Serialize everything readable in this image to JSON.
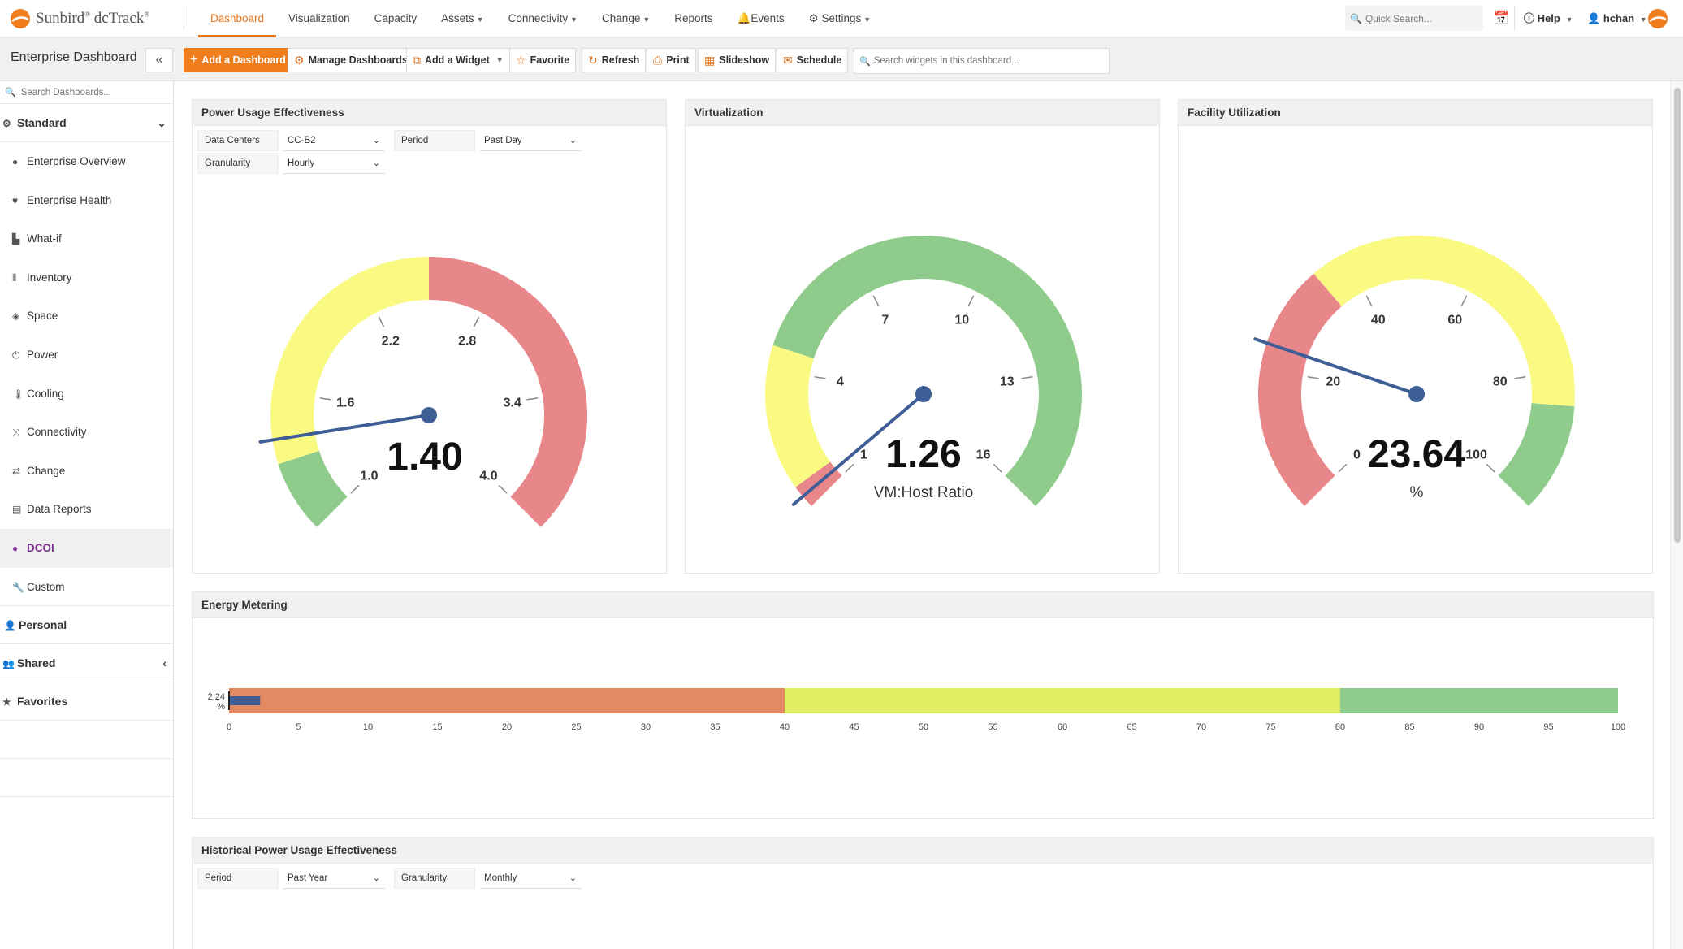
{
  "app": {
    "brand": "Sunbird",
    "product": "dcTrack"
  },
  "nav": [
    {
      "label": "Dashboard",
      "active": true,
      "caret": false
    },
    {
      "label": "Visualization",
      "active": false,
      "caret": false
    },
    {
      "label": "Capacity",
      "active": false,
      "caret": false
    },
    {
      "label": "Assets",
      "active": false,
      "caret": true
    },
    {
      "label": "Connectivity",
      "active": false,
      "caret": true
    },
    {
      "label": "Change",
      "active": false,
      "caret": true
    },
    {
      "label": "Reports",
      "active": false,
      "caret": false
    },
    {
      "label": "Events",
      "active": false,
      "caret": false
    },
    {
      "label": "Settings",
      "active": false,
      "caret": true
    }
  ],
  "topbar": {
    "search_placeholder": "Quick Search...",
    "help": "Help",
    "user": "hchan"
  },
  "toolbar": {
    "title": "Enterprise Dashboard",
    "add_dashboard": "Add a Dashboard",
    "manage": "Manage Dashboards",
    "add_widget": "Add a Widget",
    "favorite": "Favorite",
    "refresh": "Refresh",
    "print": "Print",
    "slideshow": "Slideshow",
    "schedule": "Schedule",
    "widget_search_placeholder": "Search widgets in this dashboard..."
  },
  "sidebar": {
    "search_placeholder": "Search Dashboards...",
    "standard_label": "Standard",
    "items": [
      {
        "label": "Enterprise Overview",
        "icon": "globe-icon"
      },
      {
        "label": "Enterprise Health",
        "icon": "heartbeat-icon"
      },
      {
        "label": "What-if",
        "icon": "thumbs-up-icon"
      },
      {
        "label": "Inventory",
        "icon": "barcode-icon"
      },
      {
        "label": "Space",
        "icon": "cubes-icon"
      },
      {
        "label": "Power",
        "icon": "power-icon"
      },
      {
        "label": "Cooling",
        "icon": "thermometer-icon"
      },
      {
        "label": "Connectivity",
        "icon": "shuffle-icon"
      },
      {
        "label": "Change",
        "icon": "exchange-icon"
      },
      {
        "label": "Data Reports",
        "icon": "table-icon"
      },
      {
        "label": "DCOI",
        "icon": "circle-icon",
        "active": true
      },
      {
        "label": "Custom",
        "icon": "wrench-icon"
      }
    ],
    "personal_label": "Personal",
    "shared_label": "Shared",
    "favorites_label": "Favorites"
  },
  "pue": {
    "title": "Power Usage Effectiveness",
    "filters": {
      "data_centers_label": "Data Centers",
      "data_centers_value": "CC-B2",
      "period_label": "Period",
      "period_value": "Past Day",
      "granularity_label": "Granularity",
      "granularity_value": "Hourly"
    },
    "gauge": {
      "min": 1.0,
      "max": 4.0,
      "value": 1.4,
      "value_text": "1.40",
      "unit": "",
      "ticks": [
        "1.0",
        "1.6",
        "2.2",
        "2.8",
        "3.4",
        "4.0"
      ],
      "bands": [
        {
          "from": 1.0,
          "to": 1.3,
          "color": "#8fcb8a"
        },
        {
          "from": 1.3,
          "to": 2.5,
          "color": "#fafa82"
        },
        {
          "from": 2.5,
          "to": 4.0,
          "color": "#e8878a"
        }
      ]
    }
  },
  "virtualization": {
    "title": "Virtualization",
    "gauge": {
      "min": 1,
      "max": 16,
      "value": 1.26,
      "value_text": "1.26",
      "unit": "VM:Host Ratio",
      "ticks": [
        "1",
        "4",
        "7",
        "10",
        "13",
        "16"
      ],
      "bands": [
        {
          "from": 0,
          "to": 1.5,
          "color": "#e8878a"
        },
        {
          "from": 1.5,
          "to": 4.5,
          "color": "#fafa82"
        },
        {
          "from": 4.5,
          "to": 16,
          "color": "#8fcb8a"
        }
      ]
    }
  },
  "facility": {
    "title": "Facility Utilization",
    "gauge": {
      "min": 0,
      "max": 100,
      "value": 23.64,
      "value_text": "23.64",
      "unit": "%",
      "ticks": [
        "0",
        "20",
        "40",
        "60",
        "80",
        "100"
      ],
      "bands": [
        {
          "from": 0,
          "to": 35,
          "color": "#e8878a"
        },
        {
          "from": 35,
          "to": 85,
          "color": "#fafa82"
        },
        {
          "from": 85,
          "to": 100,
          "color": "#8fcb8a"
        }
      ]
    }
  },
  "energy": {
    "title": "Energy Metering",
    "value_label": "2.24",
    "value_unit": "%",
    "value": 2.24,
    "bands": [
      {
        "from": 0,
        "to": 40,
        "color": "#e48a63"
      },
      {
        "from": 40,
        "to": 80,
        "color": "#e1ee64"
      },
      {
        "from": 80,
        "to": 100,
        "color": "#8fcb8a"
      }
    ],
    "ticks": [
      "0",
      "5",
      "10",
      "15",
      "20",
      "25",
      "30",
      "35",
      "40",
      "45",
      "50",
      "55",
      "60",
      "65",
      "70",
      "75",
      "80",
      "85",
      "90",
      "95",
      "100"
    ]
  },
  "historical": {
    "title": "Historical Power Usage Effectiveness",
    "period_label": "Period",
    "period_value": "Past Year",
    "granularity_label": "Granularity",
    "granularity_value": "Monthly"
  },
  "colors": {
    "accent": "#f07d1e",
    "needle": "#3f5e96",
    "dcoi": "#7a2e8e"
  }
}
